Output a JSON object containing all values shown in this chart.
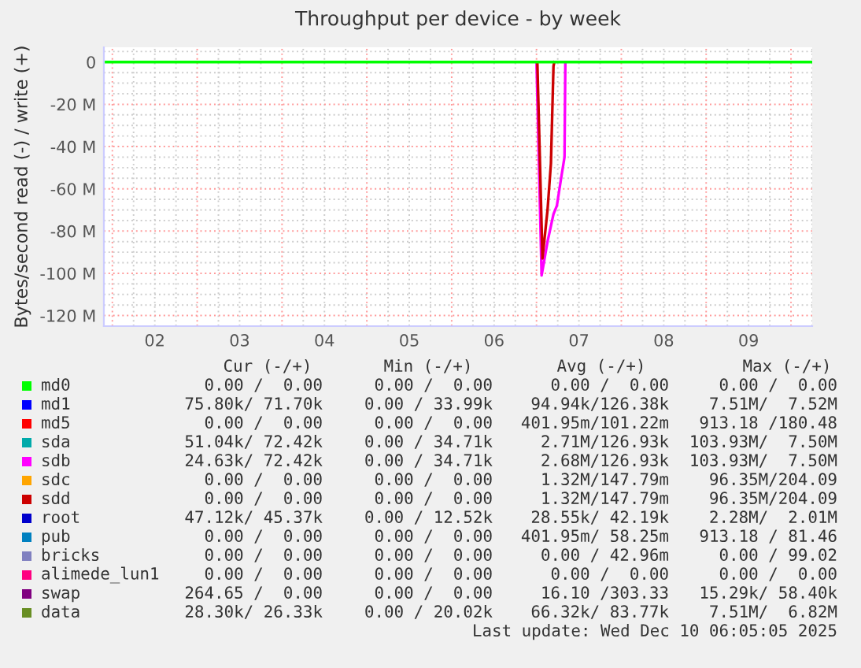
{
  "chart_data": {
    "type": "line",
    "title": "Throughput per device - by week",
    "ylabel": "Bytes/second read (-) / write (+)",
    "xlim": [
      1.4,
      9.75
    ],
    "xticks": [
      {
        "value": 2,
        "label": "02"
      },
      {
        "value": 3,
        "label": "03"
      },
      {
        "value": 4,
        "label": "04"
      },
      {
        "value": 5,
        "label": "05"
      },
      {
        "value": 6,
        "label": "06"
      },
      {
        "value": 7,
        "label": "07"
      },
      {
        "value": 8,
        "label": "08"
      },
      {
        "value": 9,
        "label": "09"
      }
    ],
    "ylim": [
      -125,
      7
    ],
    "yticks": [
      {
        "value": -120,
        "label": "-120 M"
      },
      {
        "value": -100,
        "label": "-100 M"
      },
      {
        "value": -80,
        "label": "-80 M"
      },
      {
        "value": -60,
        "label": "-60 M"
      },
      {
        "value": -40,
        "label": "-40 M"
      },
      {
        "value": -20,
        "label": "-20 M"
      },
      0
    ],
    "grid": true,
    "legend": "bottom",
    "series": [
      {
        "name": "md0",
        "color": "#00ff00",
        "x": [
          1.4,
          9.75
        ],
        "values": [
          0,
          0
        ]
      },
      {
        "name": "md1",
        "color": "#0000ff"
      },
      {
        "name": "md5",
        "color": "#ff0000"
      },
      {
        "name": "sda",
        "color": "#00aaaa"
      },
      {
        "name": "sdb",
        "color": "#ff00ff",
        "x": [
          6.5,
          6.56,
          6.63,
          6.7,
          6.74,
          6.79,
          6.83,
          6.84
        ],
        "values": [
          0,
          -101,
          -85,
          -72,
          -68,
          -55,
          -45,
          0
        ]
      },
      {
        "name": "sdc",
        "color": "#ffa500"
      },
      {
        "name": "sdd",
        "color": "#cc0000",
        "x": [
          6.51,
          6.57,
          6.63,
          6.67,
          6.7,
          6.71
        ],
        "values": [
          0,
          -93,
          -70,
          -48,
          -2,
          0
        ]
      },
      {
        "name": "root",
        "color": "#0000cc"
      },
      {
        "name": "pub",
        "color": "#0080c0"
      },
      {
        "name": "bricks",
        "color": "#8080c0"
      },
      {
        "name": "alimede_lun1",
        "color": "#ff0080"
      },
      {
        "name": "swap",
        "color": "#800080"
      },
      {
        "name": "data",
        "color": "#688e23"
      }
    ],
    "annotations": [
      "Cur (-/+)",
      "Min (-/+)",
      "Avg (-/+)",
      "Max (-/+)",
      "0.00 /  0.00",
      "0.00 /  0.00",
      "0.00 /  0.00",
      "0.00 /  0.00",
      "75.80k/ 71.70k",
      "0.00 / 33.99k",
      "94.94k/126.38k",
      "7.51M/  7.52M",
      "0.00 /  0.00",
      "0.00 /  0.00",
      "401.95m/101.22m",
      "913.18 /180.48",
      "51.04k/ 72.42k",
      "0.00 / 34.71k",
      "2.71M/126.93k",
      "103.93M/  7.50M",
      "24.63k/ 72.42k",
      "0.00 / 34.71k",
      "2.68M/126.93k",
      "103.93M/  7.50M",
      "0.00 /  0.00",
      "0.00 /  0.00",
      "1.32M/147.79m",
      "96.35M/204.09",
      "0.00 /  0.00",
      "0.00 /  0.00",
      "1.32M/147.79m",
      "96.35M/204.09",
      "47.12k/ 45.37k",
      "0.00 / 12.52k",
      "28.55k/ 42.19k",
      "2.28M/  2.01M",
      "0.00 /  0.00",
      "0.00 /  0.00",
      "401.95m/ 58.25m",
      "913.18 / 81.46",
      "0.00 /  0.00",
      "0.00 /  0.00",
      "0.00 / 42.96m",
      "0.00 / 99.02",
      "0.00 /  0.00",
      "0.00 /  0.00",
      "0.00 /  0.00",
      "0.00 /  0.00",
      "264.65 /  0.00",
      "0.00 /  0.00",
      "16.10 /303.33",
      "15.29k/ 58.40k",
      "28.30k/ 26.33k",
      "0.00 / 20.02k",
      "66.32k/ 83.77k",
      "7.51M/  6.82M",
      "Last update: Wed Dec 10 06:05:05 2025"
    ]
  }
}
